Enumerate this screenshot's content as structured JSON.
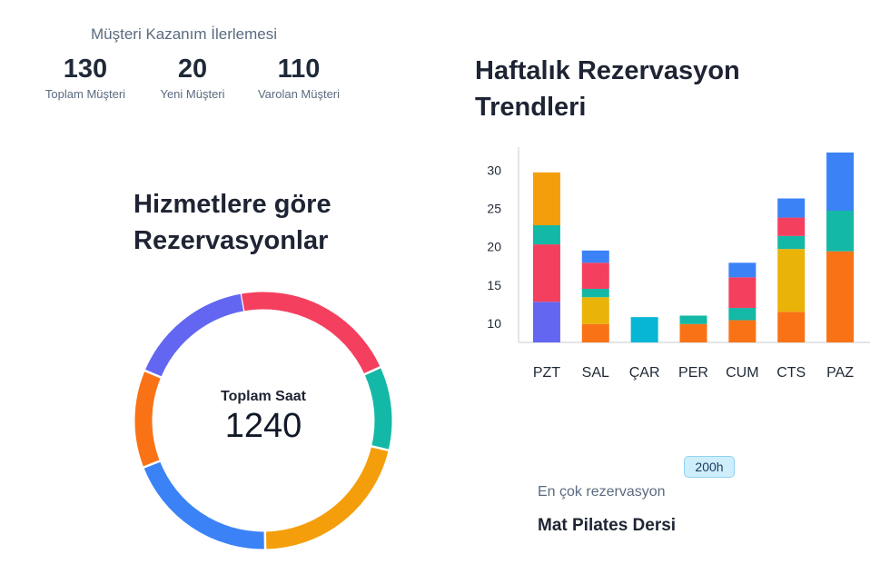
{
  "kpis": {
    "title": "Müşteri Kazanım İlerlemesi",
    "items": [
      {
        "value": "130",
        "label": "Toplam Müşteri"
      },
      {
        "value": "20",
        "label": "Yeni Müşteri"
      },
      {
        "value": "110",
        "label": "Varolan Müşteri"
      }
    ]
  },
  "donut": {
    "title_line1": "Hizmetlere göre",
    "title_line2": "Rezervasyonlar",
    "center_label": "Toplam Saat",
    "center_value": "1240"
  },
  "trend": {
    "title_line1": "Haftalık Rezervasyon",
    "title_line2": "Trendleri"
  },
  "top_service": {
    "badge": "200h",
    "label": "En çok rezervasyon",
    "name": "Mat Pilates Dersi"
  },
  "chart_data": [
    {
      "type": "pie",
      "donut": true,
      "values": [
        12,
        6,
        12,
        11,
        7,
        9
      ],
      "colors": [
        "#f43f5e",
        "#14b8a6",
        "#f59e0b",
        "#3b82f6",
        "#f97316",
        "#6366f1"
      ]
    },
    {
      "type": "bar",
      "stacked": true,
      "categories": [
        "PZT",
        "SAL",
        "ÇAR",
        "PER",
        "CUM",
        "CTS",
        "PAZ"
      ],
      "ylim": [
        7.5,
        33
      ],
      "yticks": [
        10,
        15,
        20,
        25,
        30
      ],
      "grid": false,
      "stacks": [
        [
          {
            "from": 7.5,
            "to": 12.8,
            "color": "#6366f1"
          },
          {
            "from": 12.8,
            "to": 20.3,
            "color": "#f43f5e"
          },
          {
            "from": 20.3,
            "to": 22.8,
            "color": "#14b8a6"
          },
          {
            "from": 22.8,
            "to": 29.7,
            "color": "#f59e0b"
          }
        ],
        [
          {
            "from": 7.5,
            "to": 9.9,
            "color": "#f97316"
          },
          {
            "from": 9.9,
            "to": 13.4,
            "color": "#eab308"
          },
          {
            "from": 13.4,
            "to": 14.5,
            "color": "#14b8a6"
          },
          {
            "from": 14.5,
            "to": 17.9,
            "color": "#f43f5e"
          },
          {
            "from": 17.9,
            "to": 19.5,
            "color": "#3b82f6"
          }
        ],
        [
          {
            "from": 7.5,
            "to": 10.8,
            "color": "#06b6d4"
          }
        ],
        [
          {
            "from": 7.5,
            "to": 9.9,
            "color": "#f97316"
          },
          {
            "from": 9.9,
            "to": 11.0,
            "color": "#14b8a6"
          }
        ],
        [
          {
            "from": 7.5,
            "to": 10.4,
            "color": "#f97316"
          },
          {
            "from": 10.4,
            "to": 12.0,
            "color": "#14b8a6"
          },
          {
            "from": 12.0,
            "to": 16.0,
            "color": "#f43f5e"
          },
          {
            "from": 16.0,
            "to": 17.9,
            "color": "#3b82f6"
          }
        ],
        [
          {
            "from": 7.5,
            "to": 11.5,
            "color": "#f97316"
          },
          {
            "from": 11.5,
            "to": 19.7,
            "color": "#eab308"
          },
          {
            "from": 19.7,
            "to": 21.4,
            "color": "#14b8a6"
          },
          {
            "from": 21.4,
            "to": 23.8,
            "color": "#f43f5e"
          },
          {
            "from": 23.8,
            "to": 26.3,
            "color": "#3b82f6"
          }
        ],
        [
          {
            "from": 7.5,
            "to": 19.4,
            "color": "#f97316"
          },
          {
            "from": 19.4,
            "to": 24.7,
            "color": "#14b8a6"
          },
          {
            "from": 24.7,
            "to": 32.3,
            "color": "#3b82f6"
          }
        ]
      ]
    }
  ]
}
